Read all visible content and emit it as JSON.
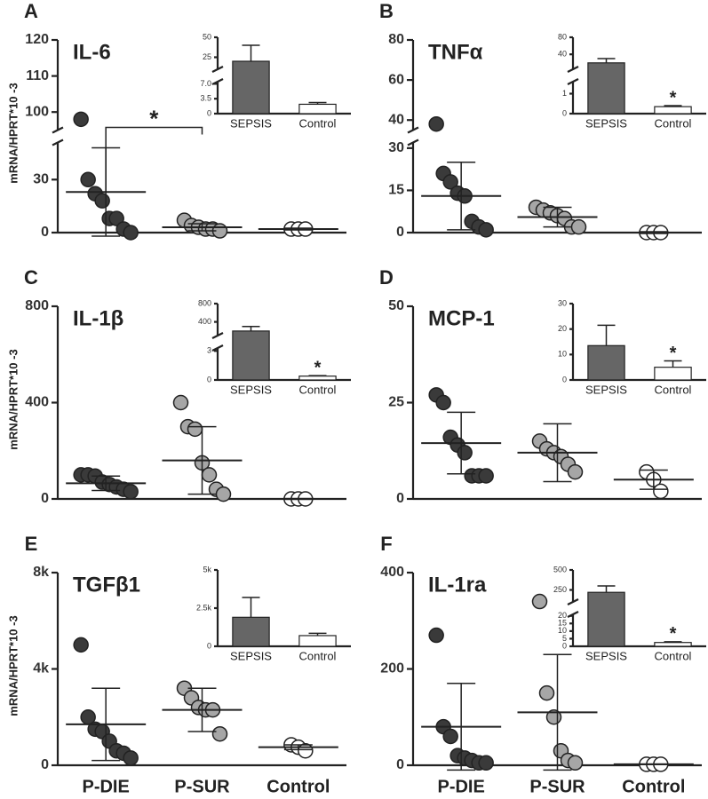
{
  "chart_data": [
    {
      "type": "dot",
      "label": "A",
      "title": "IL-6",
      "ylabel": "mRNA/HPRT*10 -3",
      "annotation": "*",
      "categories": [
        null,
        null,
        null
      ],
      "ysegments": [
        {
          "ylim": [
            0,
            51
          ],
          "yticks": [
            0,
            30
          ]
        },
        {
          "ylim": [
            95,
            120
          ],
          "yticks": [
            100,
            110,
            120
          ]
        }
      ],
      "groups": [
        {
          "color": "#3a3a3a",
          "values": [
            98,
            30,
            22,
            18,
            8,
            8,
            2,
            0
          ],
          "mean": 23,
          "error": 25
        },
        {
          "color": "#a6a6a6",
          "values": [
            7,
            4,
            3,
            2,
            2,
            1
          ],
          "mean": 3,
          "error": 2
        },
        {
          "color": "#ffffff",
          "values": [
            2,
            2,
            2
          ],
          "mean": 2,
          "error": 0.5
        }
      ],
      "inset": {
        "type": "bar",
        "categories": [
          "SEPSIS",
          "Control"
        ],
        "values": [
          20,
          2.2
        ],
        "errors": [
          20,
          0.4
        ],
        "colors": [
          "#666666",
          "#ffffff"
        ],
        "ysegments": [
          {
            "ylim": [
              0,
              7.5
            ],
            "yticks": [
              0,
              3.5,
              {
                "value": 7,
                "label": "7.0"
              }
            ]
          },
          {
            "ylim": [
              10,
              50
            ],
            "yticks": [
              25,
              50
            ]
          }
        ]
      }
    },
    {
      "type": "dot",
      "label": "B",
      "title": "TNFα",
      "categories": [
        null,
        null,
        null
      ],
      "ysegments": [
        {
          "ylim": [
            0,
            32
          ],
          "yticks": [
            0,
            15,
            30
          ]
        },
        {
          "ylim": [
            35,
            80
          ],
          "yticks": [
            40,
            60,
            80
          ]
        }
      ],
      "groups": [
        {
          "color": "#3a3a3a",
          "values": [
            38,
            21,
            18,
            14,
            13,
            4,
            2,
            1
          ],
          "mean": 13,
          "error": 12
        },
        {
          "color": "#a6a6a6",
          "values": [
            9,
            8,
            7,
            6,
            5,
            2,
            2
          ],
          "mean": 5.5,
          "error": 3.5
        },
        {
          "color": "#ffffff",
          "values": [
            0,
            0,
            0
          ],
          "mean": 0,
          "error": 0.3
        }
      ],
      "inset": {
        "type": "bar",
        "categories": [
          "SEPSIS",
          "Control"
        ],
        "values": [
          20,
          0.35
        ],
        "errors": [
          10,
          0.05
        ],
        "colors": [
          "#666666",
          "#ffffff"
        ],
        "annotation": "*",
        "ysegments": [
          {
            "ylim": [
              0,
              1.6
            ],
            "yticks": [
              0,
              1
            ]
          },
          {
            "ylim": [
              5,
              80
            ],
            "yticks": [
              40,
              80
            ]
          }
        ]
      }
    },
    {
      "type": "dot",
      "label": "C",
      "title": "IL-1β",
      "ylabel": "mRNA/HPRT*10 -3",
      "categories": [
        null,
        null,
        null
      ],
      "ysegments": [
        {
          "ylim": [
            0,
            800
          ],
          "yticks": [
            0,
            400,
            800
          ]
        }
      ],
      "groups": [
        {
          "color": "#3a3a3a",
          "values": [
            100,
            100,
            95,
            70,
            60,
            50,
            40,
            30
          ],
          "mean": 65,
          "error": 30
        },
        {
          "color": "#a6a6a6",
          "values": [
            400,
            300,
            290,
            150,
            100,
            40,
            20
          ],
          "mean": 160,
          "error": 140
        },
        {
          "color": "#ffffff",
          "values": [
            0,
            0,
            0
          ],
          "mean": 0,
          "error": 2
        }
      ],
      "inset": {
        "type": "bar",
        "categories": [
          "SEPSIS",
          "Control"
        ],
        "values": [
          200,
          0.4
        ],
        "errors": [
          100,
          0.05
        ],
        "colors": [
          "#666666",
          "#ffffff"
        ],
        "annotation": "*",
        "ysegments": [
          {
            "ylim": [
              0,
              3.3
            ],
            "yticks": [
              0,
              3
            ]
          },
          {
            "ylim": [
              100,
              800
            ],
            "yticks": [
              400,
              800
            ]
          }
        ]
      }
    },
    {
      "type": "dot",
      "label": "D",
      "title": "MCP-1",
      "categories": [
        null,
        null,
        null
      ],
      "ysegments": [
        {
          "ylim": [
            0,
            50
          ],
          "yticks": [
            0,
            25,
            50
          ]
        }
      ],
      "groups": [
        {
          "color": "#3a3a3a",
          "values": [
            27,
            25,
            16,
            14,
            12,
            6,
            6,
            6
          ],
          "mean": 14.5,
          "error": 8
        },
        {
          "color": "#a6a6a6",
          "values": [
            15,
            13,
            12,
            11,
            9,
            7
          ],
          "mean": 12,
          "error": 7.5
        },
        {
          "color": "#ffffff",
          "values": [
            7,
            5,
            2
          ],
          "mean": 5,
          "error": 2.5
        }
      ],
      "inset": {
        "type": "bar",
        "categories": [
          "SEPSIS",
          "Control"
        ],
        "values": [
          13.5,
          5
        ],
        "errors": [
          8,
          2.5
        ],
        "colors": [
          "#666666",
          "#ffffff"
        ],
        "annotation": "*",
        "ysegments": [
          {
            "ylim": [
              0,
              30
            ],
            "yticks": [
              0,
              10,
              20,
              30
            ]
          }
        ]
      }
    },
    {
      "type": "dot",
      "label": "E",
      "title": "TGFβ1",
      "ylabel": "mRNA/HPRT*10 -3",
      "categories": [
        "P-DIE",
        "P-SUR",
        "Control"
      ],
      "ysegments": [
        {
          "ylim": [
            0,
            8000
          ],
          "yticks": [
            0,
            {
              "value": 4000,
              "label": "4k"
            },
            {
              "value": 8000,
              "label": "8k"
            }
          ]
        }
      ],
      "groups": [
        {
          "color": "#3a3a3a",
          "values": [
            5000,
            2000,
            1500,
            1400,
            1000,
            600,
            500,
            300
          ],
          "mean": 1700,
          "error": 1500
        },
        {
          "color": "#a6a6a6",
          "values": [
            3200,
            2800,
            2400,
            2300,
            2300,
            1300
          ],
          "mean": 2300,
          "error": 900
        },
        {
          "color": "#ffffff",
          "values": [
            850,
            750,
            600
          ],
          "mean": 750,
          "error": 100
        }
      ],
      "inset": {
        "type": "bar",
        "categories": [
          "SEPSIS",
          "Control"
        ],
        "values": [
          1900,
          700
        ],
        "errors": [
          1300,
          150
        ],
        "colors": [
          "#666666",
          "#ffffff"
        ],
        "ysegments": [
          {
            "ylim": [
              0,
              5000
            ],
            "yticks": [
              0,
              {
                "value": 2500,
                "label": "2.5k"
              },
              {
                "value": 5000,
                "label": "5k"
              }
            ]
          }
        ]
      }
    },
    {
      "type": "dot",
      "label": "F",
      "title": "IL-1ra",
      "categories": [
        "P-DIE",
        "P-SUR",
        "Control"
      ],
      "ysegments": [
        {
          "ylim": [
            0,
            400
          ],
          "yticks": [
            0,
            200,
            400
          ]
        }
      ],
      "groups": [
        {
          "color": "#3a3a3a",
          "values": [
            270,
            80,
            60,
            20,
            15,
            10,
            5,
            5
          ],
          "mean": 80,
          "error": 90
        },
        {
          "color": "#a6a6a6",
          "values": [
            340,
            150,
            100,
            30,
            10,
            5
          ],
          "mean": 110,
          "error": 120
        },
        {
          "color": "#ffffff",
          "values": [
            2,
            2,
            2
          ],
          "mean": 2,
          "error": 0.5
        }
      ],
      "inset": {
        "type": "bar",
        "categories": [
          "SEPSIS",
          "Control"
        ],
        "values": [
          220,
          2.5
        ],
        "errors": [
          80,
          0.5
        ],
        "colors": [
          "#666666",
          "#ffffff"
        ],
        "annotation": "*",
        "ysegments": [
          {
            "ylim": [
              0,
              21
            ],
            "yticks": [
              0,
              5,
              10,
              15,
              20
            ]
          },
          {
            "ylim": [
              100,
              500
            ],
            "yticks": [
              250,
              500
            ]
          }
        ]
      }
    }
  ]
}
